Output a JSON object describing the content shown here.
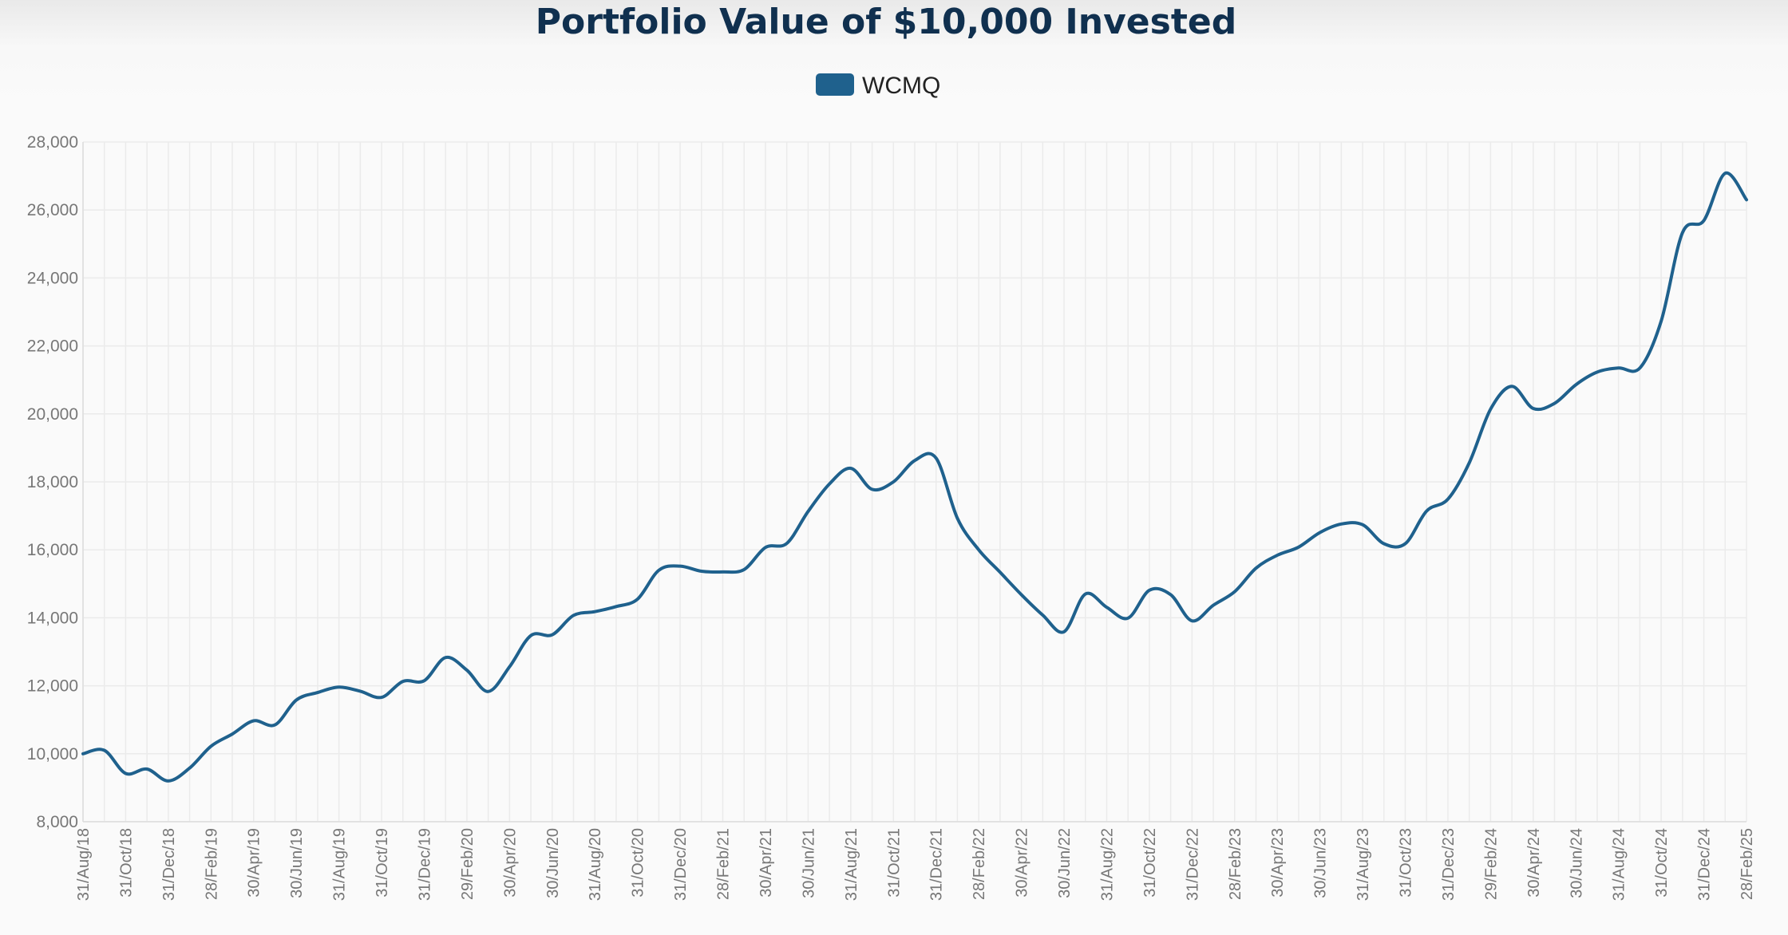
{
  "chart_data": {
    "type": "line",
    "title": "Portfolio Value of $10,000 Invested",
    "xlabel": "",
    "ylabel": "",
    "ylim": [
      8000,
      28000
    ],
    "y_ticks": [
      "8,000",
      "10,000",
      "12,000",
      "14,000",
      "16,000",
      "18,000",
      "20,000",
      "22,000",
      "24,000",
      "26,000",
      "28,000"
    ],
    "y_tick_values": [
      8000,
      10000,
      12000,
      14000,
      16000,
      18000,
      20000,
      22000,
      24000,
      26000,
      28000
    ],
    "grid": true,
    "legend_position": "top-center",
    "colors": {
      "line": "#1f618d",
      "legend_swatch": "#1f618d",
      "grid": "#ebebeb",
      "title": "#10304f"
    },
    "x_tick_labels": [
      "31/Aug/18",
      "31/Oct/18",
      "31/Dec/18",
      "28/Feb/19",
      "30/Apr/19",
      "30/Jun/19",
      "31/Aug/19",
      "31/Oct/19",
      "31/Dec/19",
      "29/Feb/20",
      "30/Apr/20",
      "30/Jun/20",
      "31/Aug/20",
      "31/Oct/20",
      "31/Dec/20",
      "28/Feb/21",
      "30/Apr/21",
      "30/Jun/21",
      "31/Aug/21",
      "31/Oct/21",
      "31/Dec/21",
      "28/Feb/22",
      "30/Apr/22",
      "30/Jun/22",
      "31/Aug/22",
      "31/Oct/22",
      "31/Dec/22",
      "28/Feb/23",
      "30/Apr/23",
      "30/Jun/23",
      "31/Aug/23",
      "31/Oct/23",
      "31/Dec/23",
      "29/Feb/24",
      "30/Apr/24",
      "30/Jun/24",
      "31/Aug/24",
      "31/Oct/24",
      "31/Dec/24",
      "28/Feb/25"
    ],
    "series": [
      {
        "name": "WCMQ",
        "x_start": "31/Aug/18",
        "frequency": "monthly",
        "values": [
          10000,
          10100,
          9420,
          9550,
          9200,
          9580,
          10220,
          10580,
          10970,
          10850,
          11580,
          11800,
          11960,
          11840,
          11660,
          12130,
          12150,
          12830,
          12460,
          11830,
          12560,
          13480,
          13500,
          14070,
          14180,
          14330,
          14550,
          15400,
          15520,
          15370,
          15350,
          15420,
          16070,
          16190,
          17130,
          17940,
          18400,
          17780,
          18000,
          18630,
          18700,
          16930,
          16000,
          15340,
          14680,
          14080,
          13590,
          14700,
          14310,
          13990,
          14810,
          14680,
          13910,
          14370,
          14770,
          15460,
          15840,
          16080,
          16510,
          16760,
          16740,
          16180,
          16180,
          17140,
          17490,
          18560,
          20140,
          20810,
          20160,
          20310,
          20860,
          21230,
          21350,
          21350,
          22730,
          25330,
          25690,
          27080,
          26300
        ]
      }
    ]
  }
}
